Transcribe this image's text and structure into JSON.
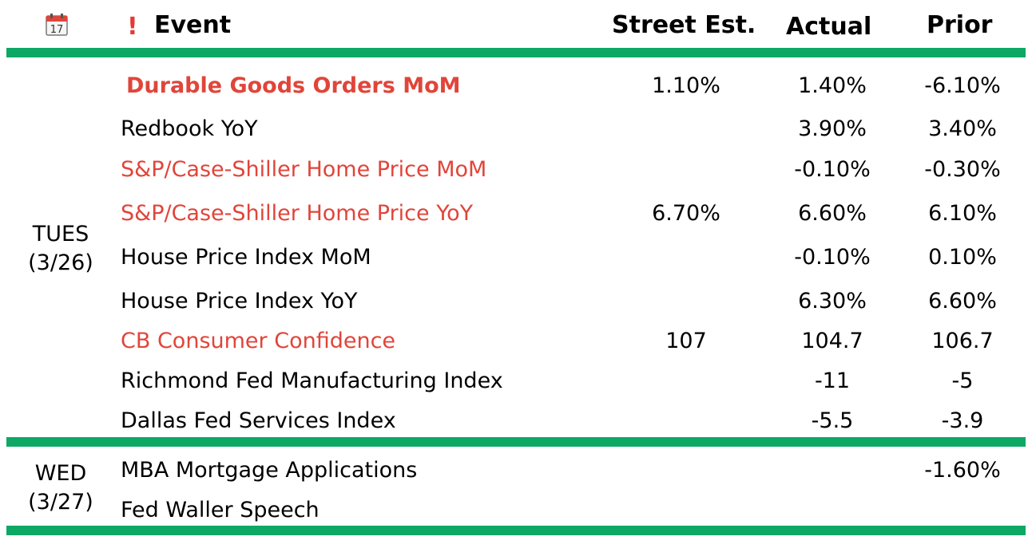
{
  "header": {
    "event_label": "Event",
    "street_est_label": "Street Est.",
    "actual_label": "Actual",
    "prior_label": "Prior",
    "calendar_icon": "calendar-icon",
    "calendar_day": "17",
    "exclamation_icon": "exclamation-icon",
    "exclamation_glyph": "!"
  },
  "colors": {
    "accent_green": "#0ea865",
    "highlight_red": "#e0453a"
  },
  "groups": [
    {
      "day": "TUES",
      "date": "(3/26)",
      "rows": [
        {
          "event": "Durable Goods Orders MoM",
          "est": "1.10%",
          "actual": "1.40%",
          "prior": "-6.10%"
        },
        {
          "event": "Redbook YoY",
          "est": "",
          "actual": "3.90%",
          "prior": "3.40%"
        },
        {
          "event": "S&P/Case-Shiller Home Price MoM",
          "est": "",
          "actual": "-0.10%",
          "prior": "-0.30%"
        },
        {
          "event": "S&P/Case-Shiller Home Price YoY",
          "est": "6.70%",
          "actual": "6.60%",
          "prior": "6.10%"
        },
        {
          "event": "House Price Index MoM",
          "est": "",
          "actual": "-0.10%",
          "prior": "0.10%"
        },
        {
          "event": "House Price Index YoY",
          "est": "",
          "actual": "6.30%",
          "prior": "6.60%"
        },
        {
          "event": "CB Consumer Confidence",
          "est": "107",
          "actual": "104.7",
          "prior": "106.7"
        },
        {
          "event": "Richmond Fed Manufacturing Index",
          "est": "",
          "actual": "-11",
          "prior": "-5"
        },
        {
          "event": "Dallas Fed Services Index",
          "est": "",
          "actual": "-5.5",
          "prior": "-3.9"
        }
      ]
    },
    {
      "day": "WED",
      "date": "(3/27)",
      "rows": [
        {
          "event": "MBA Mortgage Applications",
          "est": "",
          "actual": "",
          "prior": "-1.60%"
        },
        {
          "event": "Fed Waller Speech",
          "est": "",
          "actual": "",
          "prior": ""
        }
      ]
    }
  ]
}
